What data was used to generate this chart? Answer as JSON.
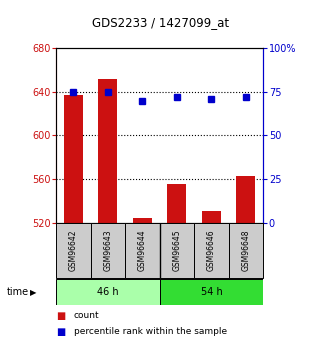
{
  "title": "GDS2233 / 1427099_at",
  "samples": [
    "GSM96642",
    "GSM96643",
    "GSM96644",
    "GSM96645",
    "GSM96646",
    "GSM96648"
  ],
  "counts": [
    637,
    652,
    524,
    555,
    531,
    563
  ],
  "percentiles": [
    75,
    75,
    70,
    72,
    71,
    72
  ],
  "ylim_left": [
    520,
    680
  ],
  "ylim_right": [
    0,
    100
  ],
  "yticks_left": [
    520,
    560,
    600,
    640,
    680
  ],
  "yticks_right": [
    0,
    25,
    50,
    75,
    100
  ],
  "ytick_labels_right": [
    "0",
    "25",
    "50",
    "75",
    "100%"
  ],
  "bar_color": "#cc1111",
  "dot_color": "#0000cc",
  "bar_width": 0.55,
  "groups": [
    {
      "label": "46 h",
      "color": "#aaffaa",
      "count": 3
    },
    {
      "label": "54 h",
      "color": "#33dd33",
      "count": 3
    }
  ],
  "time_label": "time",
  "legend_items": [
    {
      "label": "count",
      "color": "#cc1111"
    },
    {
      "label": "percentile rank within the sample",
      "color": "#0000cc"
    }
  ],
  "grid_yticks": [
    560,
    600,
    640
  ],
  "left_axis_color": "#cc1111",
  "right_axis_color": "#0000cc",
  "bg_plot": "#ffffff",
  "bg_sample_label": "#cccccc"
}
